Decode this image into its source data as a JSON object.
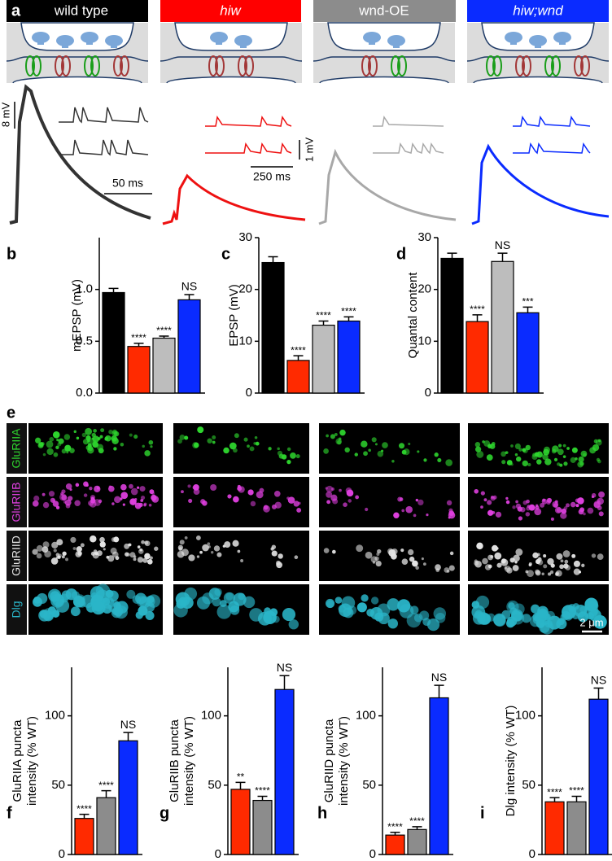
{
  "panel_a": {
    "label": "a",
    "genotypes": [
      "wild type",
      "hiw",
      "wnd-OE",
      "hiw;wnd"
    ],
    "scale_bars": [
      "8 mV",
      "50 ms",
      "1 mV",
      "250 ms"
    ]
  },
  "panel_e": {
    "label": "e",
    "channels": [
      "GluRIIA",
      "GluRIIB",
      "GluRIID",
      "Dlg"
    ],
    "scale_bar": "2 μm"
  },
  "chart_data": [
    {
      "type": "bar",
      "label": "b",
      "ylabel": [
        "mEPSP (mV)"
      ],
      "ylim": [
        0,
        1.5
      ],
      "yticks": [
        {
          "value": 0,
          "label": "0.0"
        },
        0.5,
        {
          "value": 1,
          "label": "1.0"
        }
      ],
      "values": [
        0.97,
        0.45,
        0.53,
        0.9
      ],
      "errors": [
        0.04,
        0.03,
        0.02,
        0.05
      ],
      "colors": [
        "#000000",
        "#ff2a00",
        "#bdbdbd",
        "#0a2bff"
      ],
      "annotations": [
        null,
        "****",
        "****",
        "NS"
      ]
    },
    {
      "type": "bar",
      "label": "c",
      "ylabel": [
        "EPSP (mV)"
      ],
      "ylim": [
        0,
        30
      ],
      "yticks": [
        0,
        10,
        20,
        30
      ],
      "values": [
        25.2,
        6.3,
        13.1,
        13.9
      ],
      "errors": [
        1.1,
        0.9,
        0.8,
        0.8
      ],
      "colors": [
        "#000000",
        "#ff2a00",
        "#bdbdbd",
        "#0a2bff"
      ],
      "annotations": [
        null,
        "****",
        "****",
        "****"
      ]
    },
    {
      "type": "bar",
      "label": "d",
      "ylabel": [
        "Quantal content"
      ],
      "ylim": [
        0,
        30
      ],
      "yticks": [
        0,
        10,
        20,
        30
      ],
      "values": [
        26,
        13.8,
        25.4,
        15.5
      ],
      "errors": [
        1,
        1.3,
        1.6,
        1.1
      ],
      "colors": [
        "#000000",
        "#ff2a00",
        "#bdbdbd",
        "#0a2bff"
      ],
      "annotations": [
        null,
        "****",
        "NS",
        "***"
      ]
    },
    {
      "type": "bar",
      "label": "f",
      "ylabel": [
        "GluRIIA puncta",
        "intensity (% WT)"
      ],
      "ylim": [
        0,
        135
      ],
      "yticks": [
        0,
        50,
        100
      ],
      "values": [
        26,
        41,
        82
      ],
      "errors": [
        3,
        5,
        6
      ],
      "colors": [
        "#ff2a00",
        "#8c8c8c",
        "#0a2bff"
      ],
      "annotations": [
        "****",
        "****",
        "NS"
      ]
    },
    {
      "type": "bar",
      "label": "g",
      "ylabel": [
        "GluRIIB puncta",
        "intensity (% WT)"
      ],
      "ylim": [
        0,
        135
      ],
      "yticks": [
        0,
        50,
        100
      ],
      "values": [
        47,
        39,
        119
      ],
      "errors": [
        5,
        3,
        10
      ],
      "colors": [
        "#ff2a00",
        "#8c8c8c",
        "#0a2bff"
      ],
      "annotations": [
        "**",
        "****",
        "NS"
      ]
    },
    {
      "type": "bar",
      "label": "h",
      "ylabel": [
        "GluRIID puncta",
        "intensity (% WT)"
      ],
      "ylim": [
        0,
        135
      ],
      "yticks": [
        0,
        50,
        100
      ],
      "values": [
        14,
        18,
        113
      ],
      "errors": [
        2,
        2,
        9
      ],
      "colors": [
        "#ff2a00",
        "#8c8c8c",
        "#0a2bff"
      ],
      "annotations": [
        "****",
        "****",
        "NS"
      ]
    },
    {
      "type": "bar",
      "label": "i",
      "ylabel": [
        "Dlg intensity (% WT)"
      ],
      "ylim": [
        0,
        135
      ],
      "yticks": [
        0,
        50,
        100
      ],
      "values": [
        38,
        38,
        112
      ],
      "errors": [
        3,
        4,
        8
      ],
      "colors": [
        "#ff2a00",
        "#8c8c8c",
        "#0a2bff"
      ],
      "annotations": [
        "****",
        "****",
        "NS"
      ]
    }
  ]
}
